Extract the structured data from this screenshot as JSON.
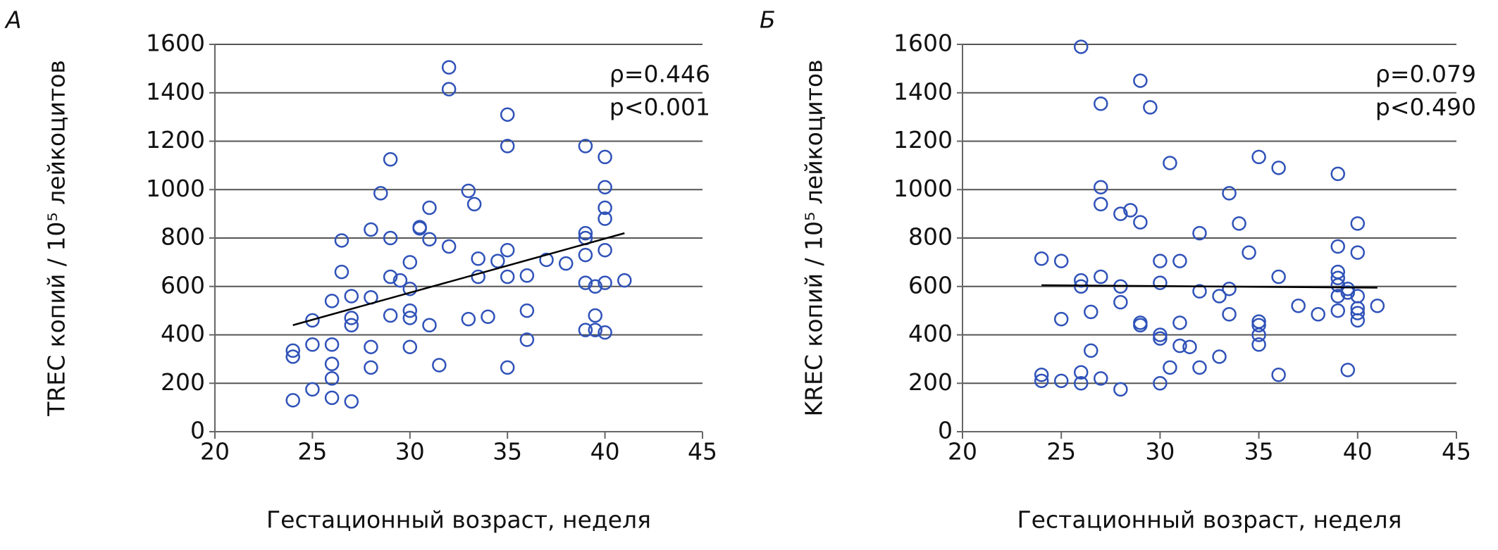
{
  "chart_data": [
    {
      "type": "scatter",
      "panel": "А",
      "ylabel": "TREC копий / 10⁵ лейкоцитов",
      "xlabel": "Гестационный возраст, неделя",
      "annotations": [
        "ρ=0.446",
        "p<0.001"
      ],
      "color": "#2f52b8",
      "xlim": [
        20,
        45
      ],
      "xticks": [
        20,
        25,
        30,
        35,
        40,
        45
      ],
      "ylim": [
        0,
        1600
      ],
      "yticks": [
        0,
        200,
        400,
        600,
        800,
        1000,
        1200,
        1400,
        1600
      ],
      "grid": true,
      "x": [
        24,
        24,
        24,
        25,
        25,
        25,
        26,
        26,
        26,
        26,
        26,
        26.5,
        26.5,
        27,
        27,
        27,
        27,
        28,
        28,
        28,
        28,
        28.5,
        29,
        29,
        29,
        29,
        29.5,
        30,
        30,
        30,
        30,
        30,
        30.5,
        30.5,
        31,
        31,
        31,
        31.5,
        32,
        32,
        32,
        33,
        33,
        33.3,
        33.5,
        33.5,
        34,
        34.5,
        35,
        35,
        35,
        35,
        35,
        36,
        36,
        36,
        37,
        38,
        39,
        39,
        39,
        39,
        39,
        39,
        39.5,
        39.5,
        39.5,
        40,
        40,
        40,
        40,
        40,
        40,
        40,
        41
      ],
      "y": [
        130,
        310,
        335,
        175,
        360,
        460,
        140,
        220,
        280,
        360,
        540,
        660,
        790,
        125,
        440,
        470,
        560,
        265,
        350,
        555,
        835,
        985,
        480,
        640,
        800,
        1125,
        625,
        350,
        470,
        500,
        590,
        700,
        840,
        845,
        440,
        795,
        925,
        275,
        765,
        1415,
        1505,
        465,
        995,
        940,
        640,
        715,
        475,
        705,
        265,
        640,
        750,
        1180,
        1310,
        380,
        500,
        645,
        710,
        695,
        420,
        615,
        730,
        800,
        820,
        1180,
        420,
        480,
        600,
        410,
        615,
        750,
        880,
        925,
        1010,
        1135,
        625
      ],
      "trend": {
        "x": [
          24,
          41
        ],
        "y": [
          440,
          820
        ]
      }
    },
    {
      "type": "scatter",
      "panel": "Б",
      "ylabel": "KREC копий / 10⁵ лейкоцитов",
      "xlabel": "Гестационный возраст, неделя",
      "annotations": [
        "ρ=0.079",
        "p<0.490"
      ],
      "color": "#2f52b8",
      "xlim": [
        20,
        45
      ],
      "xticks": [
        20,
        25,
        30,
        35,
        40,
        45
      ],
      "ylim": [
        0,
        1600
      ],
      "yticks": [
        0,
        200,
        400,
        600,
        800,
        1000,
        1200,
        1400,
        1600
      ],
      "grid": true,
      "x": [
        24,
        24,
        24,
        25,
        25,
        25,
        26,
        26,
        26,
        26,
        26,
        26.5,
        26.5,
        27,
        27,
        27,
        27,
        27,
        28,
        28,
        28,
        28,
        28.5,
        29,
        29,
        29,
        29,
        29.5,
        30,
        30,
        30,
        30,
        30,
        30.5,
        30.5,
        31,
        31,
        31,
        31.5,
        32,
        32,
        32,
        33,
        33,
        33.5,
        33.5,
        33.5,
        34,
        34.5,
        35,
        35,
        35,
        35,
        35,
        36,
        36,
        36,
        37,
        38,
        39,
        39,
        39,
        39,
        39,
        39,
        39,
        39.5,
        39.5,
        39.5,
        40,
        40,
        40,
        40,
        40,
        40,
        41
      ],
      "y": [
        210,
        235,
        715,
        210,
        465,
        705,
        200,
        245,
        600,
        625,
        1590,
        335,
        495,
        220,
        640,
        940,
        1010,
        1355,
        175,
        535,
        600,
        900,
        915,
        440,
        450,
        865,
        1450,
        1340,
        200,
        385,
        400,
        615,
        705,
        265,
        1110,
        355,
        450,
        705,
        350,
        265,
        580,
        820,
        310,
        560,
        485,
        590,
        985,
        860,
        740,
        360,
        400,
        440,
        455,
        1135,
        235,
        640,
        1090,
        520,
        485,
        500,
        560,
        605,
        635,
        660,
        765,
        1065,
        255,
        575,
        590,
        460,
        490,
        510,
        560,
        740,
        860,
        520
      ],
      "trend": {
        "x": [
          24,
          41
        ],
        "y": [
          605,
          595
        ]
      }
    }
  ]
}
